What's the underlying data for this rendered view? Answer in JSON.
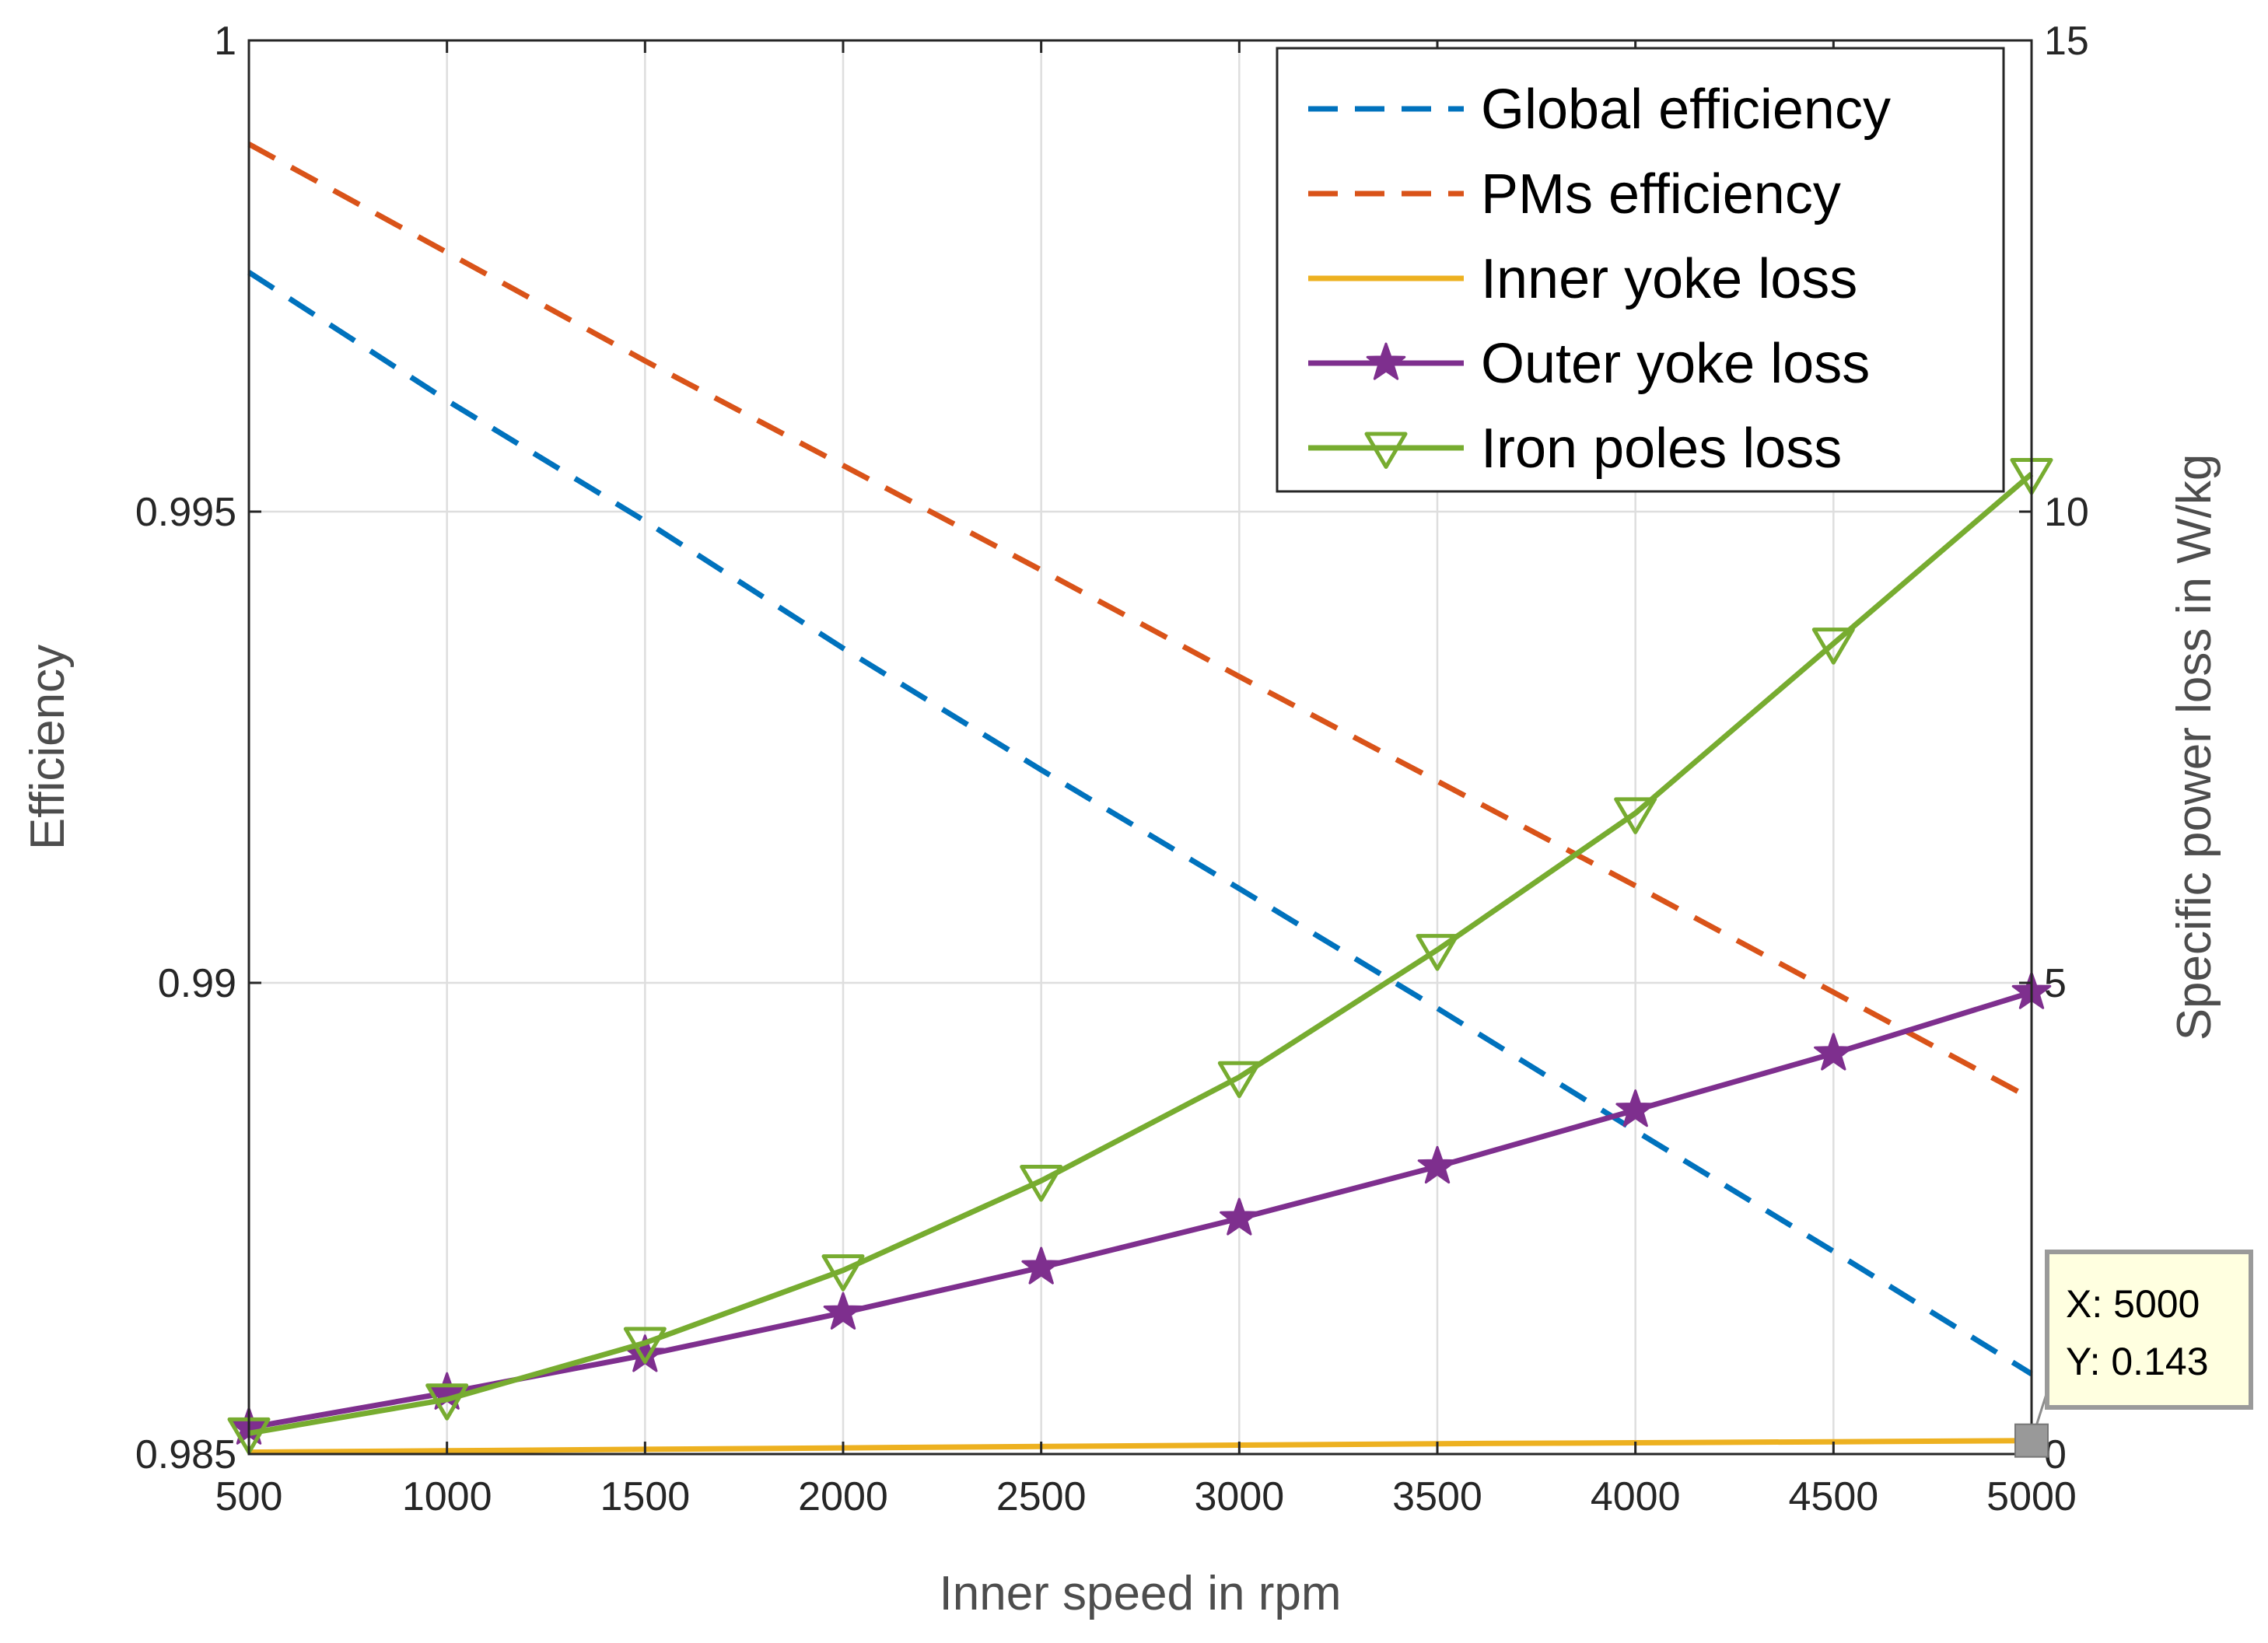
{
  "chart_data": {
    "type": "line",
    "xlabel": "Inner speed in rpm",
    "ylabel_left": "Efficiency",
    "ylabel_right": "Specific power loss in W/kg",
    "x": [
      500,
      1000,
      1500,
      2000,
      2500,
      3000,
      3500,
      4000,
      4500,
      5000
    ],
    "x_ticks": [
      "500",
      "1000",
      "1500",
      "2000",
      "2500",
      "3000",
      "3500",
      "4000",
      "4500",
      "5000"
    ],
    "xlim": [
      500,
      5000
    ],
    "ylim_left": [
      0.985,
      1
    ],
    "ylim_right": [
      0,
      15
    ],
    "y_ticks_left": [
      "0.985",
      "0.99",
      "0.995",
      "1"
    ],
    "y_ticks_right": [
      "0",
      "5",
      "10",
      "15"
    ],
    "grid": true,
    "legend_position": "top-right",
    "series": [
      {
        "name": "Global efficiency",
        "axis": "left",
        "style": "dashed",
        "color": "#0072BD",
        "values": [
          0.99754,
          0.99618,
          0.9949,
          0.99355,
          0.99226,
          0.991,
          0.98973,
          0.98843,
          0.98715,
          0.98585
        ]
      },
      {
        "name": "PMs efficiency",
        "axis": "left",
        "style": "dashed",
        "color": "#D95319",
        "values": [
          0.9989,
          0.99775,
          0.9966,
          0.99549,
          0.99438,
          0.99325,
          0.99214,
          0.99103,
          0.9899,
          0.98877
        ]
      },
      {
        "name": "Inner yoke loss",
        "axis": "right",
        "style": "solid",
        "color": "#EDB120",
        "values": [
          0.02,
          0.035,
          0.05,
          0.065,
          0.08,
          0.095,
          0.11,
          0.12,
          0.13,
          0.143
        ]
      },
      {
        "name": "Outer yoke loss",
        "axis": "right",
        "style": "solid",
        "marker": "star",
        "color": "#7E2F8E",
        "values": [
          0.28,
          0.65,
          1.05,
          1.5,
          1.98,
          2.5,
          3.05,
          3.65,
          4.25,
          4.9
        ]
      },
      {
        "name": "Iron poles loss",
        "axis": "right",
        "style": "solid",
        "marker": "triangle-down",
        "color": "#77AC30",
        "values": [
          0.22,
          0.58,
          1.18,
          1.95,
          2.9,
          4.0,
          5.35,
          6.8,
          8.6,
          10.4
        ]
      }
    ],
    "datatip": {
      "x_text": "X: 5000",
      "y_text": "Y: 0.143",
      "x": 5000,
      "y": 0.143,
      "axis": "right"
    }
  }
}
